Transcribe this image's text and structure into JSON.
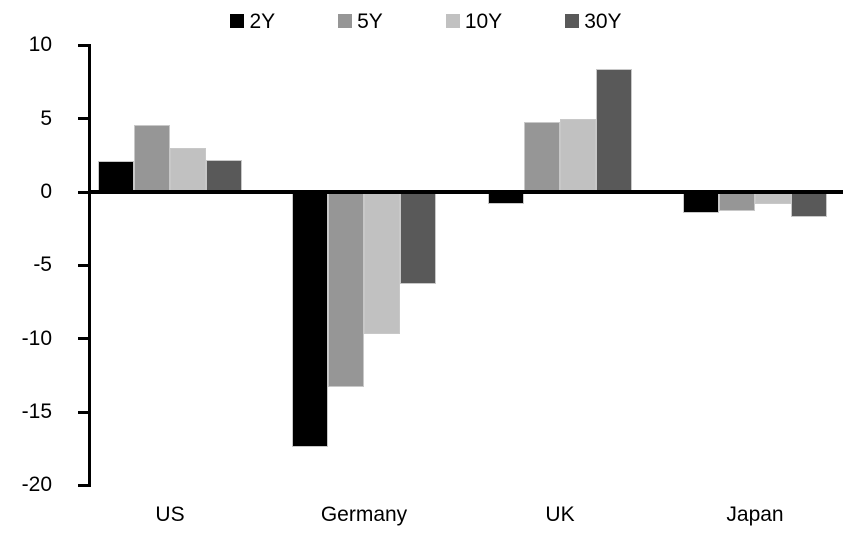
{
  "chart_data": {
    "type": "bar",
    "title": "",
    "xlabel": "",
    "ylabel": "",
    "categories": [
      "US",
      "Germany",
      "UK",
      "Japan"
    ],
    "series": [
      {
        "name": "2Y",
        "color": "#000000",
        "values": [
          2.1,
          -17.4,
          -0.8,
          -1.4
        ]
      },
      {
        "name": "5Y",
        "color": "#969696",
        "values": [
          4.6,
          -13.3,
          4.8,
          -1.3
        ]
      },
      {
        "name": "10Y",
        "color": "#C1C1C1",
        "values": [
          3.0,
          -9.7,
          5.0,
          -0.8
        ]
      },
      {
        "name": "30Y",
        "color": "#595959",
        "values": [
          2.2,
          -6.3,
          8.4,
          -1.7
        ]
      }
    ],
    "yticks": [
      10,
      5,
      0,
      -5,
      -10,
      -15,
      -20
    ],
    "ylim": [
      -20,
      10
    ],
    "grid": false,
    "legend_position": "top",
    "axis_color": "#000000",
    "background_color": "#FFFFFF"
  }
}
